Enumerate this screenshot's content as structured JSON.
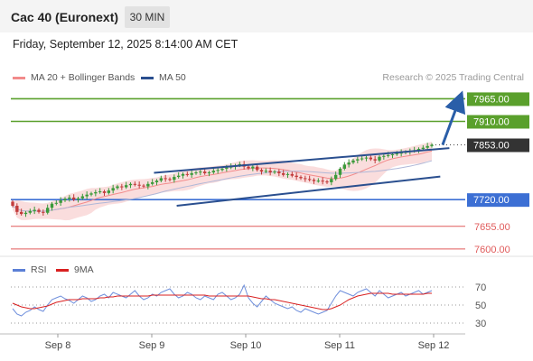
{
  "header": {
    "title": "Cac 40 (Euronext)",
    "timeframe": "30 MIN",
    "datetime": "Friday, September 12, 2025 8:14:00 AM CET",
    "credit": "Research © 2025 Trading Central"
  },
  "legend": {
    "main": [
      {
        "label": "MA 20 + Bollinger Bands",
        "color": "#f28b8b"
      },
      {
        "label": "MA 50",
        "color": "#2a4f8f"
      }
    ],
    "rsi": [
      {
        "label": "RSI",
        "color": "#5b7fd6"
      },
      {
        "label": "9MA",
        "color": "#d92020"
      }
    ]
  },
  "chart_data": {
    "type": "candlestick",
    "y_range": [
      7580,
      7990
    ],
    "x_ticks": [
      "Sep 8",
      "Sep 9",
      "Sep 10",
      "Sep 11",
      "Sep 12"
    ],
    "current_price": "7853.00",
    "levels": [
      {
        "label": "7965.00",
        "value": 7965,
        "color": "#5aa02c",
        "style": "tag"
      },
      {
        "label": "7910.00",
        "value": 7910,
        "color": "#5aa02c",
        "style": "tag"
      },
      {
        "label": "7720.00",
        "value": 7720,
        "color": "#3c6fd4",
        "style": "tag"
      },
      {
        "label": "7655.00",
        "value": 7655,
        "color": "#e05a5a",
        "style": "text"
      },
      {
        "label": "7600.00",
        "value": 7600,
        "color": "#e05a5a",
        "style": "text"
      }
    ],
    "channel": {
      "upper": [
        [
          0.315,
          7785
        ],
        [
          0.965,
          7845
        ]
      ],
      "lower": [
        [
          0.365,
          7705
        ],
        [
          0.945,
          7776
        ]
      ]
    },
    "target_arrow": [
      [
        0.98,
        7853
      ],
      [
        1.06,
        7960
      ]
    ],
    "closes": [
      7705,
      7690,
      7685,
      7688,
      7692,
      7695,
      7690,
      7688,
      7700,
      7710,
      7712,
      7718,
      7722,
      7725,
      7720,
      7723,
      7728,
      7732,
      7735,
      7738,
      7740,
      7736,
      7742,
      7748,
      7752,
      7750,
      7755,
      7758,
      7756,
      7754,
      7752,
      7758,
      7762,
      7766,
      7772,
      7770,
      7768,
      7775,
      7778,
      7782,
      7780,
      7784,
      7786,
      7788,
      7784,
      7786,
      7790,
      7792,
      7795,
      7798,
      7800,
      7803,
      7806,
      7800,
      7796,
      7800,
      7792,
      7788,
      7790,
      7786,
      7788,
      7784,
      7780,
      7782,
      7778,
      7775,
      7772,
      7770,
      7768,
      7765,
      7766,
      7764,
      7762,
      7770,
      7780,
      7795,
      7805,
      7810,
      7815,
      7818,
      7820,
      7822,
      7818,
      7815,
      7824,
      7826,
      7828,
      7830,
      7832,
      7834,
      7836,
      7838,
      7840,
      7843,
      7846,
      7850,
      7853
    ],
    "rsi_levels": [
      70,
      50,
      30
    ],
    "rsi": [
      46,
      40,
      38,
      42,
      44,
      48,
      45,
      43,
      50,
      56,
      58,
      60,
      57,
      55,
      52,
      56,
      60,
      58,
      54,
      56,
      60,
      62,
      58,
      64,
      62,
      60,
      58,
      62,
      66,
      60,
      56,
      58,
      62,
      60,
      64,
      66,
      68,
      62,
      58,
      60,
      64,
      62,
      58,
      56,
      60,
      58,
      56,
      62,
      64,
      60,
      56,
      58,
      62,
      72,
      58,
      52,
      48,
      54,
      60,
      56,
      52,
      50,
      48,
      46,
      48,
      44,
      42,
      46,
      44,
      42,
      40,
      42,
      44,
      52,
      60,
      66,
      64,
      62,
      60,
      64,
      66,
      68,
      64,
      60,
      66,
      62,
      58,
      60,
      62,
      64,
      60,
      62,
      64,
      66,
      62,
      64,
      66
    ],
    "rsi_ma": [
      52,
      50,
      48,
      47,
      46,
      46,
      47,
      48,
      49,
      51,
      53,
      54,
      55,
      56,
      56,
      56,
      57,
      57,
      57,
      57,
      58,
      58,
      59,
      59,
      60,
      60,
      60,
      60,
      60,
      60,
      60,
      60,
      61,
      61,
      61,
      61,
      61,
      61,
      61,
      61,
      61,
      61,
      61,
      61,
      61,
      60,
      60,
      60,
      60,
      60,
      60,
      60,
      60,
      60,
      60,
      59,
      58,
      57,
      57,
      56,
      56,
      55,
      54,
      53,
      52,
      51,
      50,
      49,
      48,
      47,
      46,
      45,
      45,
      46,
      48,
      50,
      53,
      56,
      58,
      60,
      61,
      62,
      63,
      63,
      63,
      63,
      63,
      62,
      62,
      62,
      62,
      62,
      62,
      62,
      62,
      63,
      63
    ]
  }
}
